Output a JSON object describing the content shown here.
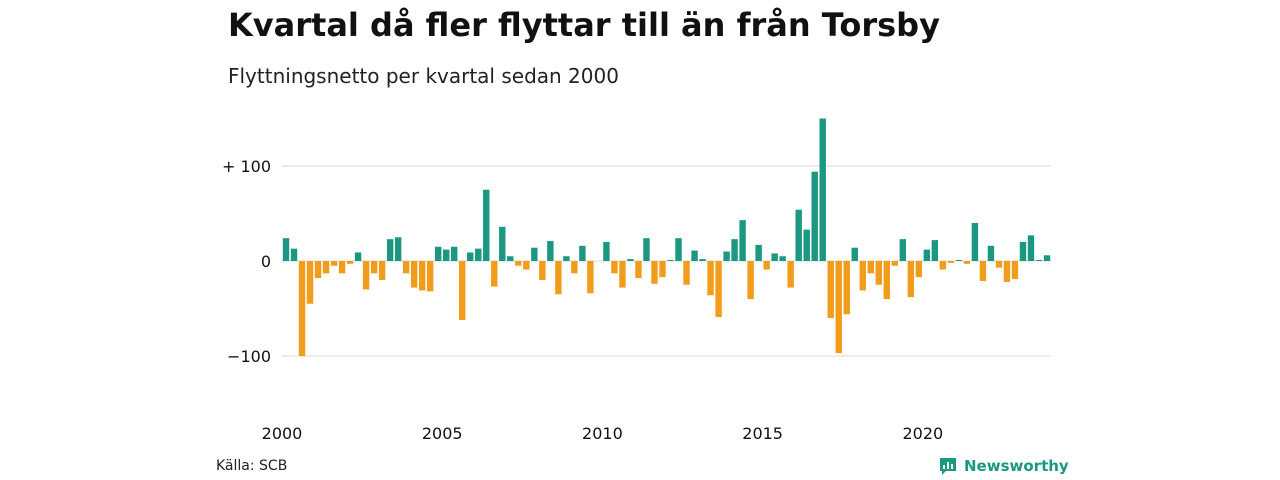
{
  "title": "Kvartal då fler flyttar till än från Torsby",
  "subtitle": "Flyttningsnetto per kvartal sedan 2000",
  "source": "Källa: SCB",
  "brand": "Newsworthy",
  "colors": {
    "positive": "#1b9782",
    "negative": "#f29c1b",
    "grid": "#d9d9d9",
    "brand": "#1b9782"
  },
  "chart_data": {
    "type": "bar",
    "start_year": 2000,
    "x_tick_labels": [
      "2000",
      "2005",
      "2010",
      "2015",
      "2020"
    ],
    "y_ticks": [
      100,
      0,
      -100
    ],
    "y_tick_labels": [
      "+ 100",
      "0",
      "−100"
    ],
    "ylim": [
      -150,
      150
    ],
    "grid": true,
    "values": [
      24,
      13,
      -100,
      -45,
      -18,
      -13,
      -5,
      -13,
      -3,
      9,
      -30,
      -13,
      -20,
      23,
      25,
      -13,
      -28,
      -31,
      -32,
      15,
      12,
      15,
      -62,
      9,
      13,
      75,
      -27,
      36,
      5,
      -5,
      -9,
      14,
      -20,
      21,
      -35,
      5,
      -13,
      16,
      -34,
      0,
      20,
      -13,
      -28,
      2,
      -18,
      24,
      -24,
      -17,
      1,
      24,
      -25,
      11,
      2,
      -36,
      -59,
      10,
      23,
      43,
      -40,
      17,
      -9,
      8,
      5,
      -28,
      54,
      33,
      94,
      150,
      -60,
      -97,
      -56,
      14,
      -31,
      -13,
      -25,
      -40,
      -5,
      23,
      -38,
      -17,
      12,
      22,
      -9,
      -2,
      1,
      -3,
      40,
      -21,
      16,
      -7,
      -22,
      -19,
      20,
      27,
      1,
      6
    ]
  }
}
